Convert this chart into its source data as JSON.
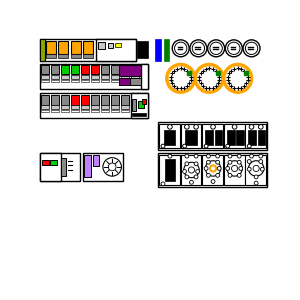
{
  "bg": "#ffffff",
  "black": "#000000",
  "white": "#ffffff",
  "orange": "#FFA500",
  "blue": "#0000FF",
  "green": "#008000",
  "green2": "#00CC00",
  "red": "#FF0000",
  "purple": "#800080",
  "gray": "#888888",
  "lgray": "#C8C8C8",
  "yellow": "#FFFF00",
  "ygreen": "#88AA00",
  "darkgray": "#444444"
}
